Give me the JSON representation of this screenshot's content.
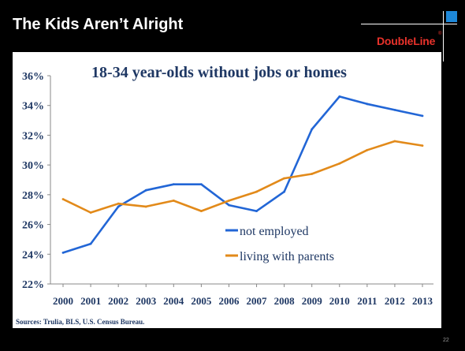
{
  "slide": {
    "title": "The Kids Aren’t Alright",
    "logo_text": "DoubleLine",
    "logo_mark": "®",
    "page_number": "22",
    "accent_color": "#1e88d8",
    "logo_color": "#e8322b"
  },
  "chart_data": {
    "type": "line",
    "title": "18-34 year-olds without jobs or homes",
    "xlabel": "",
    "ylabel": "",
    "x": [
      2000,
      2001,
      2002,
      2003,
      2004,
      2005,
      2006,
      2007,
      2008,
      2009,
      2010,
      2011,
      2012,
      2013
    ],
    "x_tick_labels": [
      "2000",
      "2001",
      "2002",
      "2003",
      "2004",
      "2005",
      "2006",
      "2007",
      "2008",
      "2009",
      "2010",
      "2011",
      "2012",
      "2013"
    ],
    "ylim": [
      22,
      36
    ],
    "y_ticks": [
      22,
      24,
      26,
      28,
      30,
      32,
      34,
      36
    ],
    "y_tick_labels": [
      "22%",
      "24%",
      "26%",
      "28%",
      "30%",
      "32%",
      "34%",
      "36%"
    ],
    "grid": false,
    "legend_placement": "bottom-center",
    "series": [
      {
        "name": "not employed",
        "color": "#2266d6",
        "values": [
          24.1,
          24.7,
          27.2,
          28.3,
          28.7,
          28.7,
          27.3,
          26.9,
          28.2,
          32.4,
          34.6,
          34.1,
          33.7,
          33.3
        ]
      },
      {
        "name": "living with parents",
        "color": "#e28a1a",
        "values": [
          27.7,
          26.8,
          27.4,
          27.2,
          27.6,
          26.9,
          27.6,
          28.2,
          29.1,
          29.4,
          30.1,
          31.0,
          31.6,
          31.3
        ]
      }
    ],
    "source": "Sources: Trulia, BLS, U.S. Census Bureau."
  }
}
